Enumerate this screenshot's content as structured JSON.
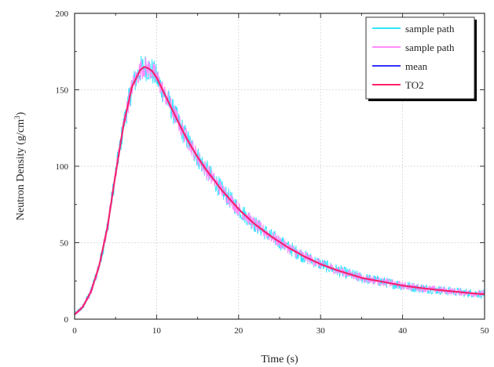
{
  "chart_data": {
    "type": "line",
    "xlabel": "Time (s)",
    "ylabel_main": "Neutron Density (g/cm",
    "ylabel_sup": "3",
    "ylabel_close": ")",
    "xlim": [
      0,
      50
    ],
    "ylim": [
      0,
      200
    ],
    "xticks": [
      0,
      10,
      20,
      30,
      40,
      50
    ],
    "yticks": [
      0,
      50,
      100,
      150,
      200
    ],
    "grid": true,
    "legend_position": "top-right",
    "x": [
      0,
      1,
      2,
      3,
      4,
      5,
      6,
      7,
      8,
      8.5,
      9,
      9.5,
      10,
      11,
      12,
      13,
      14,
      15,
      16,
      18,
      20,
      22,
      24,
      26,
      28,
      30,
      32,
      35,
      38,
      40,
      42,
      44,
      46,
      48,
      50
    ],
    "series": [
      {
        "name": "sample path",
        "color": "#33e6ff",
        "noise": 9,
        "values": [
          3,
          8,
          18,
          35,
          60,
          95,
          128,
          152,
          163,
          165,
          164,
          162,
          158,
          147,
          136,
          125,
          115,
          106,
          98,
          84,
          72,
          62,
          54,
          47,
          41,
          36,
          32,
          27,
          24,
          22,
          20.5,
          19.3,
          18.2,
          17.2,
          16.3
        ]
      },
      {
        "name": "sample path",
        "color": "#ff8cff",
        "noise": 7,
        "values": [
          3,
          8,
          18,
          35,
          60,
          95,
          128,
          152,
          163,
          165,
          164,
          162,
          158,
          147,
          136,
          125,
          115,
          106,
          98,
          84,
          72,
          62,
          54,
          47,
          41,
          36,
          32,
          27,
          24,
          22,
          20.5,
          19.3,
          18.2,
          17.2,
          16.3
        ]
      },
      {
        "name": "mean",
        "color": "#3333ff",
        "noise": 0,
        "values": [
          3,
          8,
          18,
          35,
          60,
          95,
          128,
          152,
          163,
          165,
          164,
          162,
          158,
          147,
          136,
          125,
          115,
          106,
          98,
          84,
          72,
          62,
          54,
          47,
          41,
          36,
          32,
          27,
          24,
          22,
          20.5,
          19.3,
          18.2,
          17.2,
          16.3
        ]
      },
      {
        "name": "TO2",
        "color": "#ff2266",
        "noise": 0,
        "values": [
          3,
          8,
          18,
          35,
          60,
          95,
          128,
          152,
          163,
          165,
          164,
          162,
          158,
          147,
          136,
          125,
          115,
          106,
          98,
          84,
          72,
          62,
          54,
          47,
          41,
          36,
          32,
          27,
          24,
          22,
          20.5,
          19.3,
          18.2,
          17.2,
          16.3
        ]
      }
    ]
  }
}
